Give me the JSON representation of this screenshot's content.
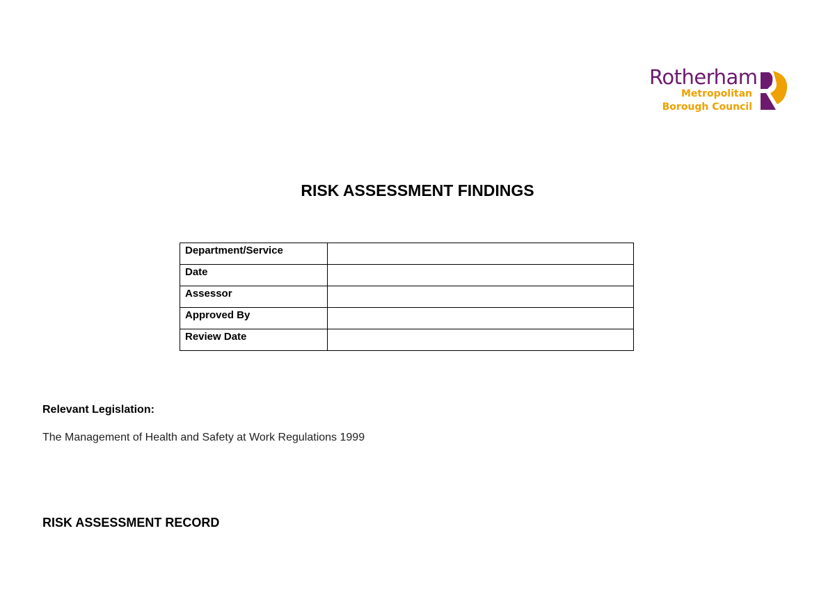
{
  "logo": {
    "line1": "Rotherham",
    "line2": "Metropolitan",
    "line3": "Borough Council",
    "colors": {
      "purple": "#6b1a6e",
      "orange": "#eea100"
    }
  },
  "title": "RISK ASSESSMENT FINDINGS",
  "details_table": {
    "rows": [
      {
        "label": "Department/Service",
        "value": ""
      },
      {
        "label": "Date",
        "value": ""
      },
      {
        "label": "Assessor",
        "value": ""
      },
      {
        "label": "Approved By",
        "value": ""
      },
      {
        "label": "Review Date",
        "value": ""
      }
    ]
  },
  "legislation": {
    "heading": "Relevant Legislation:",
    "text": "The Management of Health and Safety at Work Regulations 1999"
  },
  "record_heading": "RISK ASSESSMENT RECORD"
}
